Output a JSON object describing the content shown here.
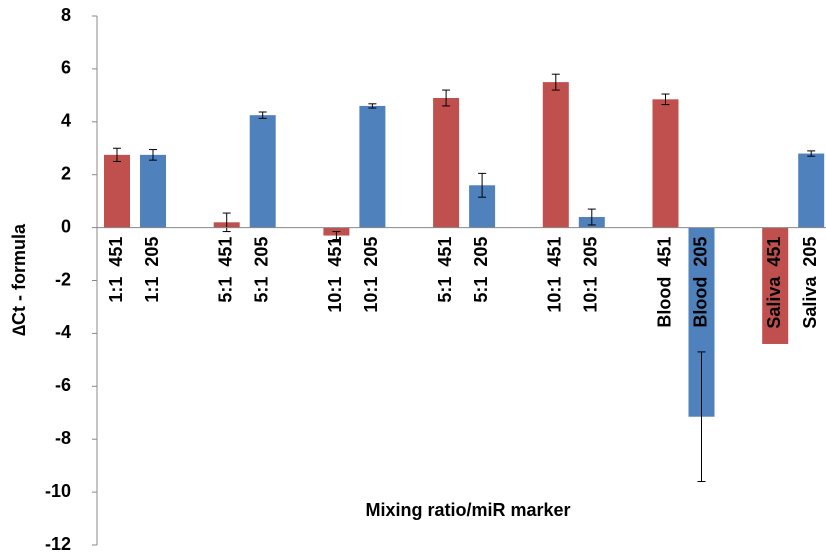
{
  "chart_data": {
    "type": "bar",
    "x_label": "Mixing ratio/miR marker",
    "y_label": "∆Ct - formula",
    "categories": [
      "1:1  451",
      "1:1  205",
      "5:1  451",
      "5:1  205",
      "10:1  451",
      "10:1  205",
      "5:1  451",
      "5:1  205",
      "10:1  451",
      "10:1  205",
      "Blood  451",
      "Blood  205",
      "Saliva  451",
      "Saliva  205"
    ],
    "values": [
      2.75,
      2.75,
      0.2,
      4.25,
      -0.3,
      4.6,
      4.9,
      1.6,
      5.5,
      0.4,
      4.85,
      -7.15,
      -4.4,
      2.8
    ],
    "errors": [
      0.25,
      0.2,
      0.35,
      0.12,
      0.15,
      0.08,
      0.3,
      0.45,
      0.3,
      0.3,
      0.2,
      2.45,
      null,
      0.1
    ],
    "colors": [
      "#c0504d",
      "#4f81bd",
      "#c0504d",
      "#4f81bd",
      "#c0504d",
      "#4f81bd",
      "#c0504d",
      "#4f81bd",
      "#c0504d",
      "#4f81bd",
      "#c0504d",
      "#4f81bd",
      "#c0504d",
      "#4f81bd"
    ],
    "ylim": [
      -12,
      8
    ],
    "yticks": [
      -12,
      -10,
      -8,
      -6,
      -4,
      -2,
      0,
      2,
      4,
      6,
      8
    ],
    "grid": false
  }
}
